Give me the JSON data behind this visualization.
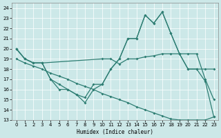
{
  "xlabel": "Humidex (Indice chaleur)",
  "xlim": [
    -0.5,
    23.5
  ],
  "ylim": [
    13,
    24.5
  ],
  "yticks": [
    13,
    14,
    15,
    16,
    17,
    18,
    19,
    20,
    21,
    22,
    23,
    24
  ],
  "xticks": [
    0,
    1,
    2,
    3,
    4,
    5,
    6,
    7,
    8,
    9,
    10,
    11,
    12,
    13,
    14,
    15,
    16,
    17,
    18,
    19,
    20,
    21,
    22,
    23
  ],
  "bg_color": "#cce8e8",
  "line_color": "#2d7d72",
  "grid_color": "#ffffff",
  "line1_x": [
    0,
    1,
    2,
    3,
    10,
    11,
    12,
    13,
    14,
    15,
    16,
    17,
    18,
    19,
    20,
    21,
    22,
    23
  ],
  "line1_y": [
    20,
    19,
    18.6,
    18.6,
    19.0,
    19.0,
    18.5,
    19.0,
    19.0,
    19.2,
    19.3,
    19.5,
    19.5,
    19.5,
    18.0,
    18.0,
    18.0,
    18.0
  ],
  "line2_x": [
    0,
    1,
    2,
    3,
    4,
    5,
    6,
    7,
    8,
    9,
    10,
    11,
    12,
    13,
    14,
    15,
    16,
    17,
    18,
    19,
    20,
    21,
    22,
    23
  ],
  "line2_y": [
    20,
    19,
    18.6,
    18.6,
    17.0,
    16.0,
    16.0,
    15.5,
    14.7,
    16.0,
    16.5,
    18.0,
    19.0,
    21.0,
    21.0,
    23.3,
    22.5,
    23.6,
    21.5,
    19.5,
    19.5,
    19.5,
    17.0,
    15.0
  ],
  "line3_x": [
    0,
    1,
    2,
    3,
    4,
    5,
    6,
    7,
    8,
    9,
    10,
    11,
    12,
    13,
    14,
    15,
    16,
    17,
    18,
    19,
    20,
    21,
    22,
    23
  ],
  "line3_y": [
    19.0,
    18.6,
    18.3,
    18.0,
    17.6,
    17.3,
    17.0,
    16.6,
    16.3,
    16.0,
    15.6,
    15.3,
    15.0,
    14.7,
    14.3,
    14.0,
    13.7,
    13.4,
    13.1,
    13.0,
    13.0,
    13.0,
    13.0,
    13.3
  ],
  "line4_x": [
    0,
    1,
    2,
    3,
    4,
    5,
    6,
    7,
    8,
    9,
    10,
    11,
    12,
    13,
    14,
    15,
    16,
    17,
    18,
    19,
    20,
    21,
    22,
    23
  ],
  "line4_y": [
    20,
    19,
    18.6,
    18.6,
    17.0,
    16.5,
    16.0,
    15.5,
    15.2,
    16.5,
    16.5,
    18.0,
    19.0,
    21.0,
    21.0,
    23.3,
    22.5,
    23.6,
    21.5,
    19.5,
    18.0,
    18.0,
    16.8,
    13.3
  ]
}
